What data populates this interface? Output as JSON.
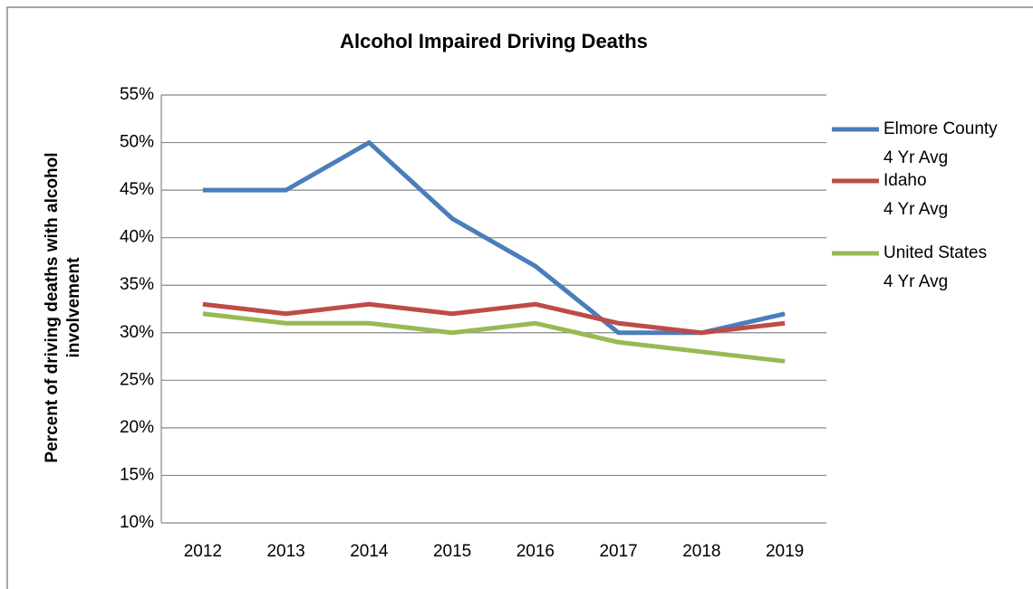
{
  "chart_data": {
    "type": "line",
    "title": "Alcohol Impaired Driving Deaths",
    "y_label": "Percent of driving deaths with alcohol\ninvolvement",
    "categories": [
      "2012",
      "2013",
      "2014",
      "2015",
      "2016",
      "2017",
      "2018",
      "2019"
    ],
    "series": [
      {
        "name": "Elmore County\n4 Yr Avg",
        "color": "#4a7ebb",
        "values": [
          45,
          45,
          50,
          42,
          37,
          30,
          30,
          32
        ]
      },
      {
        "name": "Idaho\n4 Yr Avg",
        "color": "#be4b48",
        "values": [
          33,
          32,
          33,
          32,
          33,
          31,
          30,
          31
        ]
      },
      {
        "name": "United States\n4 Yr Avg",
        "color": "#98b954",
        "values": [
          32,
          31,
          31,
          30,
          31,
          29,
          28,
          27
        ]
      }
    ],
    "ylim": [
      10,
      55
    ],
    "yticks": [
      {
        "value": 10,
        "label": "10%"
      },
      {
        "value": 15,
        "label": "15%"
      },
      {
        "value": 20,
        "label": "20%"
      },
      {
        "value": 25,
        "label": "25%"
      },
      {
        "value": 30,
        "label": "30%"
      },
      {
        "value": 35,
        "label": "35%"
      },
      {
        "value": 40,
        "label": "40%"
      },
      {
        "value": 45,
        "label": "45%"
      },
      {
        "value": 50,
        "label": "50%"
      },
      {
        "value": 55,
        "label": "55%"
      }
    ],
    "grid": true,
    "legend": "right"
  }
}
